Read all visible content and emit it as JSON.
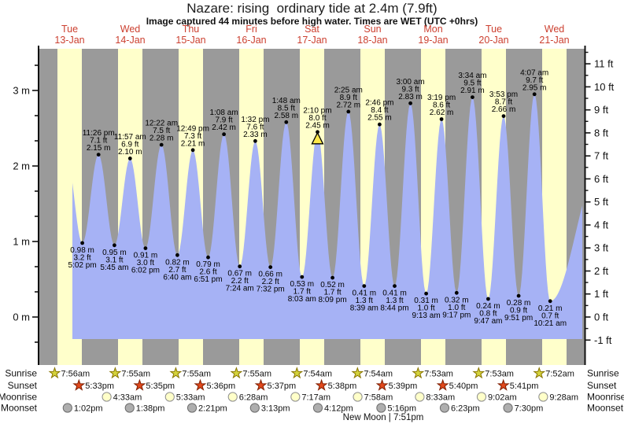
{
  "app": {
    "title": "Nazare: rising  ordinary tide at 2.4m (7.9ft)",
    "subtitle": "Image captured 44 minutes before high water. Times are WET (UTC +0hrs)"
  },
  "colors": {
    "night_band": "#9a9a9a",
    "day_band": "#ffffcb",
    "tide_fill": "#a6b2f5",
    "day_label_red": "#cc4030",
    "axis_black": "#111111",
    "marker_yellow": "#ffe84a"
  },
  "chart_data": {
    "type": "area",
    "title": "Nazare: rising ordinary tide at 2.4m (7.9ft)",
    "timezone_note": "Times are WET (UTC +0hrs)",
    "ylabel_left": "meters",
    "ylabel_right": "feet",
    "left_ticks": [
      "0 m",
      "1 m",
      "2 m",
      "3 m"
    ],
    "right_ticks": [
      "-1 ft",
      "0 ft",
      "1 ft",
      "2 ft",
      "3 ft",
      "4 ft",
      "5 ft",
      "6 ft",
      "7 ft",
      "8 ft",
      "9 ft",
      "10 ft",
      "11 ft"
    ],
    "days": [
      {
        "weekday": "Tue",
        "date": "13-Jan"
      },
      {
        "weekday": "Wed",
        "date": "14-Jan"
      },
      {
        "weekday": "Thu",
        "date": "15-Jan"
      },
      {
        "weekday": "Fri",
        "date": "16-Jan"
      },
      {
        "weekday": "Sat",
        "date": "17-Jan"
      },
      {
        "weekday": "Sun",
        "date": "18-Jan"
      },
      {
        "weekday": "Mon",
        "date": "19-Jan"
      },
      {
        "weekday": "Tue",
        "date": "20-Jan"
      },
      {
        "weekday": "Wed",
        "date": "21-Jan"
      }
    ],
    "tide_events": [
      {
        "day": 0,
        "time": "5:02 pm",
        "type": "low",
        "m": "0.98",
        "ft": "3.2"
      },
      {
        "day": 0,
        "time": "11:26 pm",
        "type": "high",
        "m": "2.15",
        "ft": "7.1"
      },
      {
        "day": 1,
        "time": "5:45 am",
        "type": "low",
        "m": "0.95",
        "ft": "3.1"
      },
      {
        "day": 1,
        "time": "11:57 am",
        "type": "high",
        "m": "2.10",
        "ft": "6.9"
      },
      {
        "day": 1,
        "time": "6:02 pm",
        "type": "low",
        "m": "0.91",
        "ft": "3.0"
      },
      {
        "day": 2,
        "time": "12:22 am",
        "type": "high",
        "m": "2.28",
        "ft": "7.5"
      },
      {
        "day": 2,
        "time": "6:40 am",
        "type": "low",
        "m": "0.82",
        "ft": "2.7"
      },
      {
        "day": 2,
        "time": "12:49 pm",
        "type": "high",
        "m": "2.21",
        "ft": "7.3"
      },
      {
        "day": 2,
        "time": "6:51 pm",
        "type": "low",
        "m": "0.79",
        "ft": "2.6"
      },
      {
        "day": 3,
        "time": "1:08 am",
        "type": "high",
        "m": "2.42",
        "ft": "7.9"
      },
      {
        "day": 3,
        "time": "7:24 am",
        "type": "low",
        "m": "0.67",
        "ft": "2.2"
      },
      {
        "day": 3,
        "time": "1:32 pm",
        "type": "high",
        "m": "2.33",
        "ft": "7.6"
      },
      {
        "day": 3,
        "time": "7:32 pm",
        "type": "low",
        "m": "0.66",
        "ft": "2.2"
      },
      {
        "day": 4,
        "time": "1:48 am",
        "type": "high",
        "m": "2.58",
        "ft": "8.5"
      },
      {
        "day": 4,
        "time": "8:03 am",
        "type": "low",
        "m": "0.53",
        "ft": "1.7"
      },
      {
        "day": 4,
        "time": "2:10 pm",
        "type": "high",
        "m": "2.45",
        "ft": "8.0",
        "current": true
      },
      {
        "day": 4,
        "time": "8:09 pm",
        "type": "low",
        "m": "0.52",
        "ft": "1.7"
      },
      {
        "day": 5,
        "time": "2:25 am",
        "type": "high",
        "m": "2.72",
        "ft": "8.9"
      },
      {
        "day": 5,
        "time": "8:39 am",
        "type": "low",
        "m": "0.41",
        "ft": "1.3"
      },
      {
        "day": 5,
        "time": "2:46 pm",
        "type": "high",
        "m": "2.55",
        "ft": "8.4"
      },
      {
        "day": 5,
        "time": "8:44 pm",
        "type": "low",
        "m": "0.41",
        "ft": "1.3"
      },
      {
        "day": 6,
        "time": "3:00 am",
        "type": "high",
        "m": "2.83",
        "ft": "9.3"
      },
      {
        "day": 6,
        "time": "9:13 am",
        "type": "low",
        "m": "0.31",
        "ft": "1.0"
      },
      {
        "day": 6,
        "time": "3:19 pm",
        "type": "high",
        "m": "2.62",
        "ft": "8.6"
      },
      {
        "day": 6,
        "time": "9:17 pm",
        "type": "low",
        "m": "0.32",
        "ft": "1.0"
      },
      {
        "day": 7,
        "time": "3:34 am",
        "type": "high",
        "m": "2.91",
        "ft": "9.5"
      },
      {
        "day": 7,
        "time": "9:47 am",
        "type": "low",
        "m": "0.24",
        "ft": "0.8"
      },
      {
        "day": 7,
        "time": "3:53 pm",
        "type": "high",
        "m": "2.66",
        "ft": "8.7"
      },
      {
        "day": 7,
        "time": "9:51 pm",
        "type": "low",
        "m": "0.28",
        "ft": "0.9"
      },
      {
        "day": 8,
        "time": "4:07 am",
        "type": "high",
        "m": "2.95",
        "ft": "9.7"
      },
      {
        "day": 8,
        "time": "10:21 am",
        "type": "low",
        "m": "0.21",
        "ft": "0.7"
      }
    ],
    "current_marker": {
      "day_index": 4,
      "time": "2:10 pm",
      "shape": "yellow-triangle"
    }
  },
  "almanac": {
    "rows": [
      {
        "label": "Sunrise",
        "icon": "sunrise-star-icon",
        "shape": "star",
        "fill": "#d4d33c",
        "stroke": "#877300",
        "entries": [
          {
            "day": 0,
            "time": "7:56am"
          },
          {
            "day": 1,
            "time": "7:55am"
          },
          {
            "day": 2,
            "time": "7:55am"
          },
          {
            "day": 3,
            "time": "7:55am"
          },
          {
            "day": 4,
            "time": "7:54am"
          },
          {
            "day": 5,
            "time": "7:54am"
          },
          {
            "day": 6,
            "time": "7:53am"
          },
          {
            "day": 7,
            "time": "7:53am"
          },
          {
            "day": 8,
            "time": "7:52am"
          }
        ]
      },
      {
        "label": "Sunset",
        "icon": "sunset-star-icon",
        "shape": "star",
        "fill": "#e2491c",
        "stroke": "#7d1d00",
        "entries": [
          {
            "day": 0,
            "time": "5:33pm"
          },
          {
            "day": 1,
            "time": "5:35pm"
          },
          {
            "day": 2,
            "time": "5:36pm"
          },
          {
            "day": 3,
            "time": "5:37pm"
          },
          {
            "day": 4,
            "time": "5:38pm"
          },
          {
            "day": 5,
            "time": "5:39pm"
          },
          {
            "day": 6,
            "time": "5:40pm"
          },
          {
            "day": 7,
            "time": "5:41pm"
          }
        ]
      },
      {
        "label": "Moonrise",
        "icon": "moonrise-circle-icon",
        "shape": "circle",
        "fill": "#ffffc9",
        "stroke": "#8f8f8f",
        "entries": [
          {
            "day": 1,
            "time": "4:33am"
          },
          {
            "day": 2,
            "time": "5:33am"
          },
          {
            "day": 3,
            "time": "6:28am"
          },
          {
            "day": 4,
            "time": "7:17am"
          },
          {
            "day": 5,
            "time": "7:58am"
          },
          {
            "day": 6,
            "time": "8:33am"
          },
          {
            "day": 7,
            "time": "9:02am"
          },
          {
            "day": 8,
            "time": "9:28am"
          }
        ]
      },
      {
        "label": "Moonset",
        "icon": "moonset-circle-icon",
        "shape": "circle",
        "fill": "#aeaeae",
        "stroke": "#6d6d6d",
        "entries": [
          {
            "day": 0,
            "time": "1:02pm"
          },
          {
            "day": 1,
            "time": "1:38pm"
          },
          {
            "day": 2,
            "time": "2:21pm"
          },
          {
            "day": 3,
            "time": "3:13pm"
          },
          {
            "day": 4,
            "time": "4:12pm"
          },
          {
            "day": 5,
            "time": "5:16pm"
          },
          {
            "day": 6,
            "time": "6:23pm"
          },
          {
            "day": 7,
            "time": "7:30pm"
          }
        ]
      }
    ],
    "moon_phase": "New Moon | 7:51pm"
  }
}
